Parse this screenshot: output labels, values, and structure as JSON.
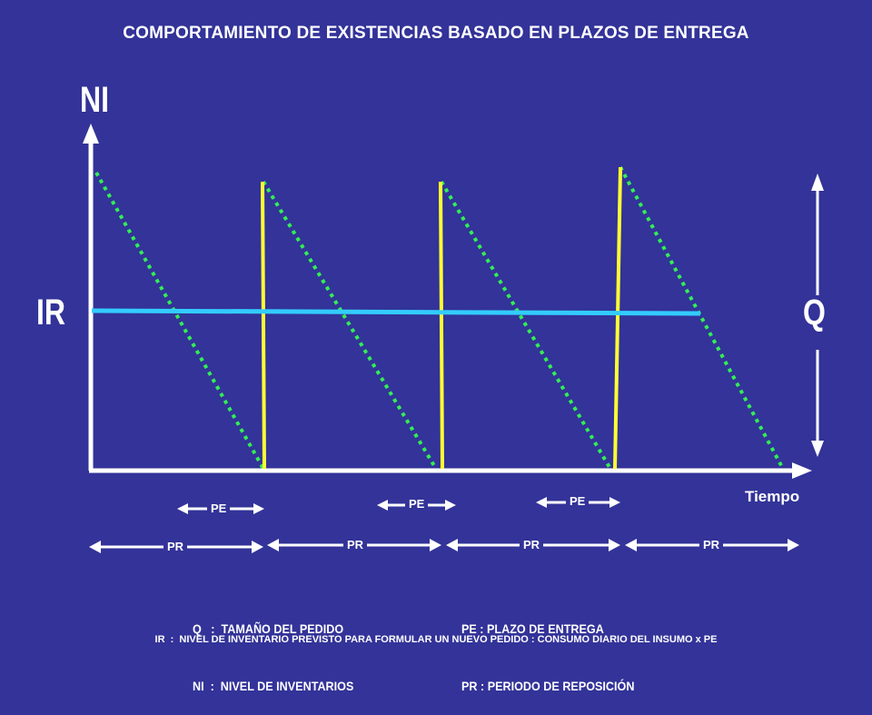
{
  "title": "COMPORTAMIENTO DE EXISTENCIAS BASADO EN PLAZOS DE ENTREGA",
  "axis": {
    "y_label": "NI",
    "x_label": "Tiempo",
    "reorder_label": "IR",
    "order_qty_label": "Q"
  },
  "intervals": {
    "pe_label": "PE",
    "pr_label": "PR"
  },
  "legend": {
    "left": [
      "Q   :  TAMAÑO DEL PEDIDO",
      "NI  :  NIVEL DE INVENTARIOS"
    ],
    "right": [
      "PE : PLAZO DE ENTREGA",
      "PR : PERIODO DE REPOSICIÓN"
    ]
  },
  "footnote": "IR  :  NIVEL DE INVENTARIO PREVISTO PARA FORMULAR UN NUEVO PEDIDO : CONSUMO DIARIO DEL INSUMO x PE",
  "colors": {
    "background": "#333399",
    "axes": "#ffffff",
    "consumption": "#33ee55",
    "replenishment": "#ffff33",
    "reorder_level": "#33ccff"
  }
}
